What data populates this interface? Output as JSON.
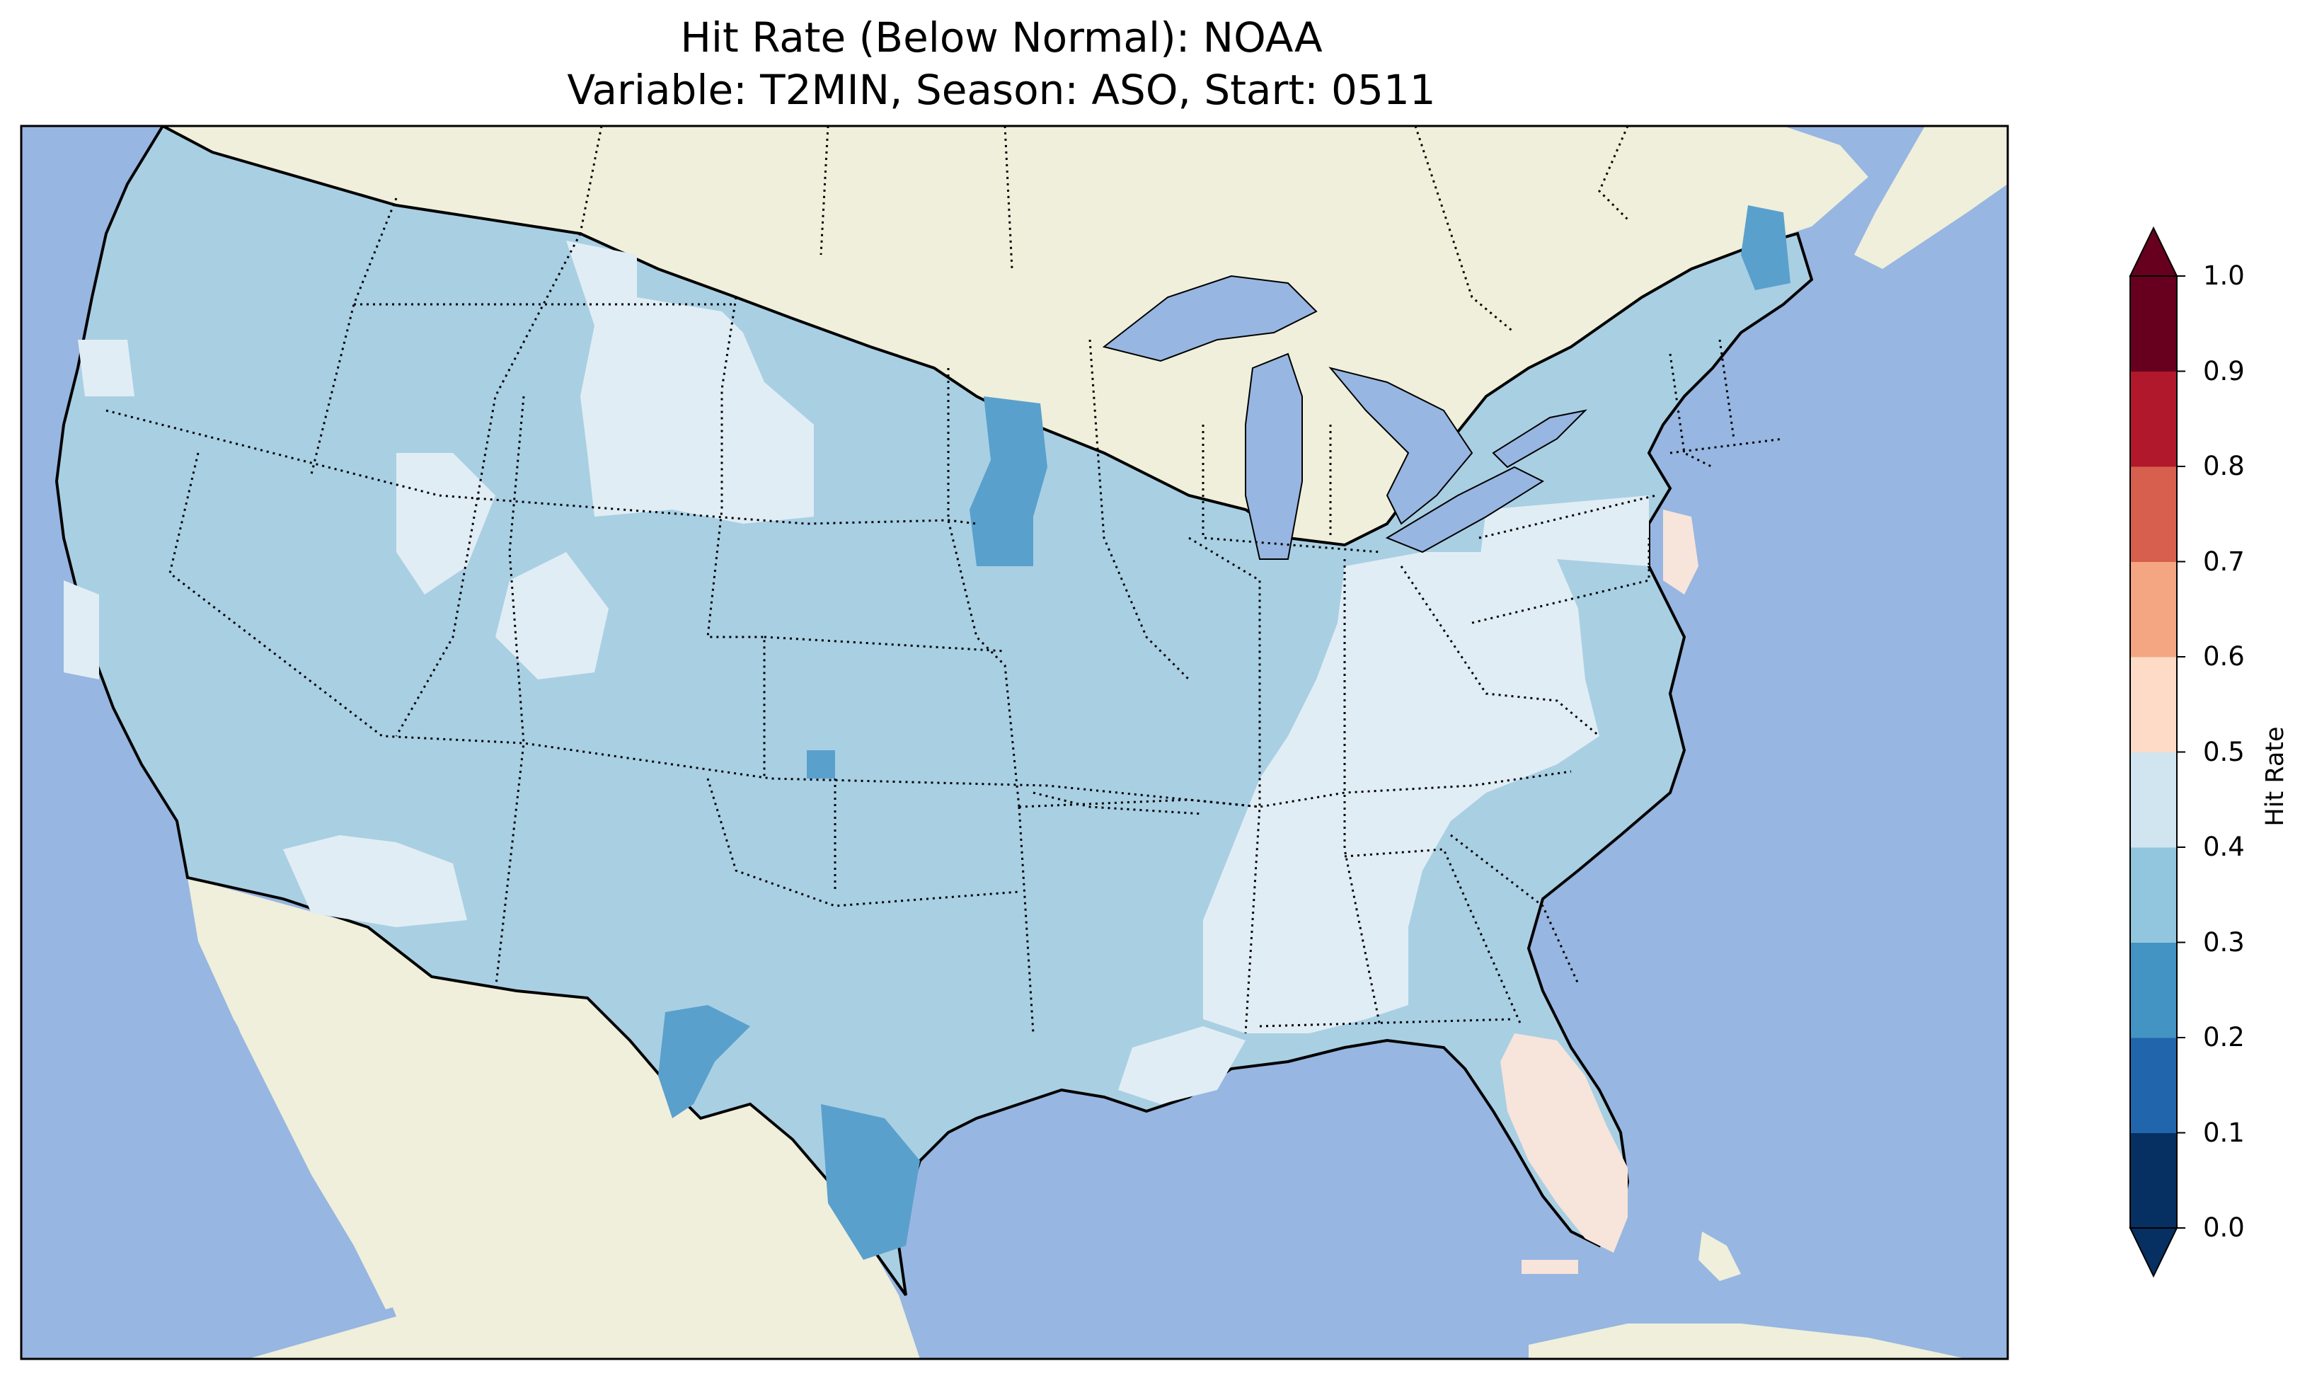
{
  "title_line1": "Hit Rate (Below Normal): NOAA",
  "title_line2": "Variable: T2MIN, Season: ASO, Start: 0511",
  "colorbar": {
    "label": "Hit Rate",
    "ticks": [
      "0.0",
      "0.1",
      "0.2",
      "0.3",
      "0.4",
      "0.5",
      "0.6",
      "0.7",
      "0.8",
      "0.9",
      "1.0"
    ],
    "bins": [
      {
        "range": [
          0.0,
          0.1
        ],
        "color": "#053061"
      },
      {
        "range": [
          0.1,
          0.2
        ],
        "color": "#2166ac"
      },
      {
        "range": [
          0.2,
          0.3
        ],
        "color": "#4393c3"
      },
      {
        "range": [
          0.3,
          0.4
        ],
        "color": "#92c5de"
      },
      {
        "range": [
          0.4,
          0.5
        ],
        "color": "#d1e5f0"
      },
      {
        "range": [
          0.5,
          0.6
        ],
        "color": "#fddbc7"
      },
      {
        "range": [
          0.6,
          0.7
        ],
        "color": "#f4a582"
      },
      {
        "range": [
          0.7,
          0.8
        ],
        "color": "#d6604d"
      },
      {
        "range": [
          0.8,
          0.9
        ],
        "color": "#b2182b"
      },
      {
        "range": [
          0.9,
          1.0
        ],
        "color": "#67001f"
      }
    ],
    "extend": "both"
  },
  "map": {
    "ocean_color": "#97b6e1",
    "land_color": "#efefdb",
    "dominant_hit_rate_range": [
      0.3,
      0.4
    ],
    "regions": [
      {
        "area": "Northern Rockies / High Plains",
        "hit_rate_range": [
          0.4,
          0.5
        ]
      },
      {
        "area": "Southeast / Ohio Valley",
        "hit_rate_range": [
          0.4,
          0.5
        ]
      },
      {
        "area": "South Texas",
        "hit_rate_range": [
          0.2,
          0.3
        ]
      },
      {
        "area": "Southern Minnesota",
        "hit_rate_range": [
          0.2,
          0.3
        ]
      },
      {
        "area": "Northern Maine",
        "hit_rate_range": [
          0.2,
          0.3
        ]
      },
      {
        "area": "Florida peninsula",
        "hit_rate_range": [
          0.5,
          0.6
        ]
      },
      {
        "area": "New Jersey",
        "hit_rate_range": [
          0.5,
          0.6
        ]
      }
    ]
  }
}
